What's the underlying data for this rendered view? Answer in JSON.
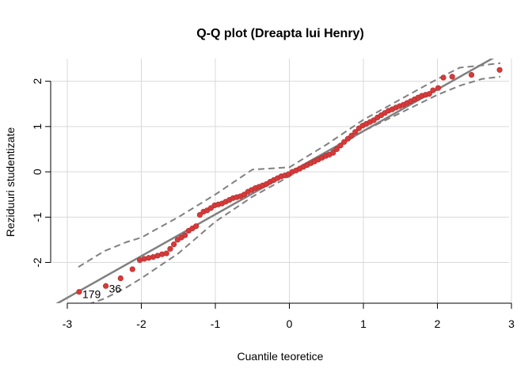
{
  "chart_data": {
    "type": "scatter",
    "title": "Q-Q plot (Dreapta lui Henry)",
    "xlabel": "Cuantile teoretice",
    "ylabel": "Reziduuri studentizate",
    "xlim": [
      -3,
      3
    ],
    "ylim": [
      -2.9,
      2.5
    ],
    "x_ticks": [
      -3,
      -2,
      -1,
      0,
      1,
      2,
      3
    ],
    "y_ticks": [
      -2,
      -1,
      0,
      1,
      2
    ],
    "grid": true,
    "colors": {
      "points": "#d63a3a",
      "line": "#808080",
      "grid": "#d9d9d9"
    },
    "reference_line": {
      "intercept": -0.02,
      "slope": 0.92
    },
    "confidence_band": {
      "x": [
        -2.85,
        -2.5,
        -2.2,
        -2.0,
        -1.5,
        -1.0,
        -0.5,
        0.0,
        0.5,
        1.0,
        1.5,
        2.0,
        2.3,
        2.6,
        2.85
      ],
      "upper": [
        -2.1,
        -1.75,
        -1.55,
        -1.45,
        -1.0,
        -0.5,
        0.05,
        0.1,
        0.6,
        1.15,
        1.6,
        2.05,
        2.3,
        2.35,
        2.4
      ],
      "lower": [
        -3.0,
        -2.8,
        -2.55,
        -2.35,
        -1.8,
        -1.1,
        -0.55,
        -0.1,
        0.4,
        0.9,
        1.3,
        1.7,
        1.9,
        2.05,
        2.1
      ]
    },
    "points": {
      "x": [
        -2.84,
        -2.48,
        -2.28,
        -2.12,
        -2.02,
        -1.96,
        -1.9,
        -1.84,
        -1.78,
        -1.72,
        -1.66,
        -1.61,
        -1.56,
        -1.51,
        -1.46,
        -1.41,
        -1.36,
        -1.31,
        -1.26,
        -1.21,
        -1.16,
        -1.11,
        -1.06,
        -1.01,
        -0.96,
        -0.91,
        -0.86,
        -0.81,
        -0.76,
        -0.71,
        -0.66,
        -0.61,
        -0.56,
        -0.51,
        -0.46,
        -0.41,
        -0.36,
        -0.31,
        -0.26,
        -0.21,
        -0.16,
        -0.11,
        -0.06,
        -0.01,
        0.04,
        0.09,
        0.14,
        0.19,
        0.24,
        0.29,
        0.34,
        0.39,
        0.44,
        0.49,
        0.54,
        0.59,
        0.64,
        0.69,
        0.74,
        0.79,
        0.84,
        0.89,
        0.94,
        0.99,
        1.04,
        1.09,
        1.14,
        1.19,
        1.24,
        1.29,
        1.34,
        1.39,
        1.44,
        1.49,
        1.54,
        1.59,
        1.64,
        1.69,
        1.74,
        1.79,
        1.84,
        1.89,
        1.94,
        2.01,
        2.08,
        2.2,
        2.46,
        2.84
      ],
      "y": [
        -2.65,
        -2.52,
        -2.35,
        -2.15,
        -1.95,
        -1.92,
        -1.9,
        -1.88,
        -1.85,
        -1.82,
        -1.8,
        -1.7,
        -1.6,
        -1.5,
        -1.45,
        -1.4,
        -1.3,
        -1.25,
        -1.2,
        -0.95,
        -0.88,
        -0.85,
        -0.8,
        -0.74,
        -0.72,
        -0.7,
        -0.66,
        -0.62,
        -0.58,
        -0.56,
        -0.54,
        -0.5,
        -0.44,
        -0.4,
        -0.36,
        -0.33,
        -0.3,
        -0.27,
        -0.22,
        -0.18,
        -0.14,
        -0.1,
        -0.08,
        -0.05,
        0.0,
        0.03,
        0.07,
        0.11,
        0.15,
        0.19,
        0.23,
        0.27,
        0.31,
        0.35,
        0.38,
        0.42,
        0.5,
        0.58,
        0.66,
        0.73,
        0.8,
        0.88,
        0.96,
        1.02,
        1.06,
        1.1,
        1.14,
        1.2,
        1.25,
        1.3,
        1.35,
        1.38,
        1.42,
        1.45,
        1.48,
        1.52,
        1.56,
        1.6,
        1.64,
        1.68,
        1.7,
        1.72,
        1.8,
        1.85,
        2.08,
        2.1,
        2.14,
        2.25
      ]
    },
    "point_labels": [
      {
        "text": "179",
        "x": -2.84,
        "y": -2.65
      },
      {
        "text": "36",
        "x": -2.48,
        "y": -2.52
      }
    ]
  }
}
